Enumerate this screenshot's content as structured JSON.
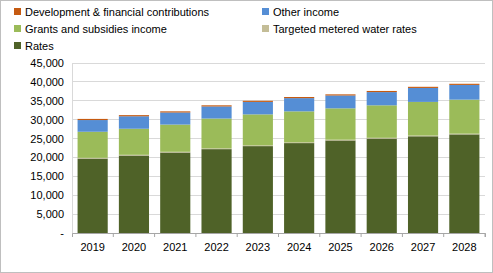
{
  "chart_data": {
    "type": "bar",
    "stacked": true,
    "grid": true,
    "legend": "top",
    "categories": [
      "2019",
      "2020",
      "2021",
      "2022",
      "2023",
      "2024",
      "2025",
      "2026",
      "2027",
      "2028"
    ],
    "series": [
      {
        "name": "Rates",
        "color": "#4f6228",
        "values": [
          19700,
          20500,
          21300,
          22200,
          23000,
          23800,
          24500,
          25000,
          25600,
          26100
        ]
      },
      {
        "name": "Targeted metered water rates",
        "color": "#c4bd97",
        "values": [
          200,
          200,
          200,
          200,
          200,
          200,
          200,
          200,
          200,
          200
        ]
      },
      {
        "name": "Grants and subsidies income",
        "color": "#9bbb59",
        "values": [
          6900,
          6900,
          7200,
          7900,
          8200,
          8200,
          8300,
          8600,
          8900,
          9000
        ]
      },
      {
        "name": "Other income",
        "color": "#558ed5",
        "values": [
          3100,
          3300,
          3200,
          3200,
          3300,
          3500,
          3400,
          3500,
          3700,
          3900
        ]
      },
      {
        "name": "Development & financial contributions",
        "color": "#c55a11",
        "values": [
          300,
          300,
          300,
          300,
          300,
          300,
          300,
          300,
          300,
          300
        ]
      }
    ],
    "ylim": [
      0,
      45000
    ],
    "yticks": [
      {
        "value": 0,
        "label": "-"
      },
      {
        "value": 5000,
        "label": "5,000"
      },
      {
        "value": 10000,
        "label": "10,000"
      },
      {
        "value": 15000,
        "label": "15,000"
      },
      {
        "value": 20000,
        "label": "20,000"
      },
      {
        "value": 25000,
        "label": "25,000"
      },
      {
        "value": 30000,
        "label": "30,000"
      },
      {
        "value": 35000,
        "label": "35,000"
      },
      {
        "value": 40000,
        "label": "40,000"
      },
      {
        "value": 45000,
        "label": "45,000"
      }
    ]
  }
}
